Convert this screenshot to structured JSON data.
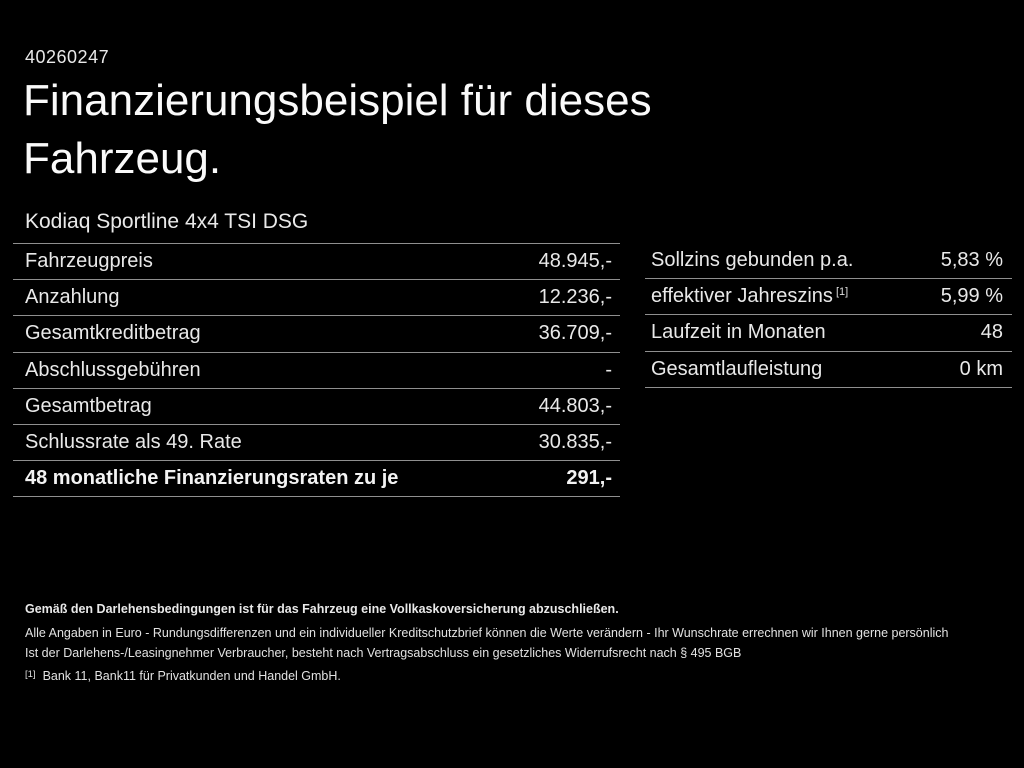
{
  "page": {
    "id_number": "40260247",
    "title": "Finanzierungsbeispiel für dieses Fahrzeug.",
    "subtitle": "Kodiaq Sportline 4x4 TSI DSG"
  },
  "colors": {
    "background": "#000000",
    "text": "#e9e9e9",
    "separator": "#8f8f8f"
  },
  "finance_table": {
    "rows": [
      {
        "label": "Fahrzeugpreis",
        "value": "48.945,-"
      },
      {
        "label": "Anzahlung",
        "value": "12.236,-"
      },
      {
        "label": "Gesamtkreditbetrag",
        "value": "36.709,-"
      },
      {
        "label": "Abschlussgebühren",
        "value": "-"
      },
      {
        "label": "Gesamtbetrag",
        "value": "44.803,-"
      },
      {
        "label": "Schlussrate als 49. Rate",
        "value": "30.835,-"
      },
      {
        "label": "48 monatliche Finanzierungsraten zu je",
        "value": "291,-"
      }
    ]
  },
  "conditions_table": {
    "rows": [
      {
        "label": "Sollzins gebunden p.a.",
        "sup": "",
        "value": "5,83 %"
      },
      {
        "label": "effektiver Jahreszins",
        "sup": "[1]",
        "value": "5,99 %"
      },
      {
        "label": "Laufzeit in Monaten",
        "sup": "",
        "value": "48"
      },
      {
        "label": "Gesamtlaufleistung",
        "sup": "",
        "value": "0 km"
      }
    ]
  },
  "footer": {
    "insurance_note": "Gemäß den Darlehensbedingungen ist für das Fahrzeug eine Vollkaskoversicherung abzuschließen.",
    "disclaimer_line1": "Alle Angaben in Euro - Rundungsdifferenzen und ein individueller Kreditschutzbrief können die Werte verändern - Ihr Wunschrate errechnen wir Ihnen gerne persönlich",
    "disclaimer_line2": "Ist der Darlehens-/Leasingnehmer Verbraucher, besteht nach Vertragsabschluss ein gesetzliches Widerrufsrecht nach § 495 BGB",
    "footnote_marker": "[1]",
    "footnote_text": "Bank 11, Bank11 für Privatkunden und Handel GmbH."
  }
}
